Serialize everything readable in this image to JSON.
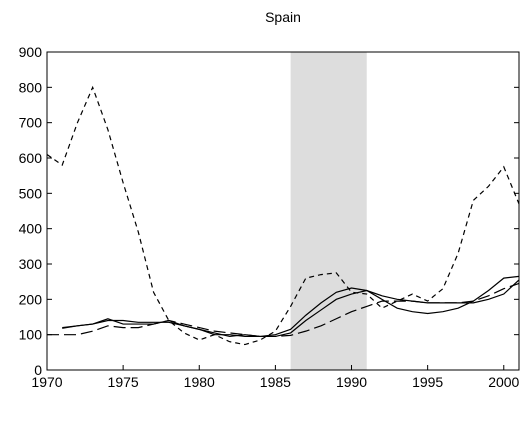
{
  "chart_data": {
    "type": "line",
    "title": "Spain",
    "x": [
      1970,
      1971,
      1972,
      1973,
      1974,
      1975,
      1976,
      1977,
      1978,
      1979,
      1980,
      1981,
      1982,
      1983,
      1984,
      1985,
      1986,
      1987,
      1988,
      1989,
      1990,
      1991,
      1992,
      1993,
      1994,
      1995,
      1996,
      1997,
      1998,
      1999,
      2000,
      2001
    ],
    "series": [
      {
        "color": "#000000",
        "dash": "5,4",
        "values": [
          610,
          580,
          700,
          800,
          680,
          530,
          390,
          220,
          140,
          105,
          85,
          100,
          80,
          72,
          85,
          110,
          180,
          260,
          270,
          275,
          220,
          215,
          175,
          195,
          215,
          195,
          230,
          330,
          480,
          520,
          575,
          470
        ]
      },
      {
        "color": "#000000",
        "dash": "none",
        "values": [
          null,
          120,
          125,
          130,
          145,
          130,
          130,
          130,
          140,
          125,
          115,
          105,
          95,
          100,
          95,
          100,
          115,
          155,
          190,
          220,
          232,
          225,
          200,
          175,
          165,
          160,
          165,
          175,
          195,
          225,
          260,
          265
        ]
      },
      {
        "color": "#000000",
        "dash": "12,5",
        "values": [
          100,
          100,
          100,
          110,
          125,
          120,
          120,
          130,
          140,
          130,
          120,
          110,
          105,
          100,
          95,
          95,
          98,
          110,
          125,
          145,
          165,
          180,
          195,
          195,
          195,
          190,
          190,
          190,
          195,
          210,
          230,
          245
        ]
      },
      {
        "color": "#000000",
        "dash": "none",
        "values": [
          null,
          118,
          125,
          130,
          140,
          140,
          135,
          135,
          135,
          125,
          115,
          100,
          100,
          95,
          95,
          95,
          105,
          140,
          170,
          200,
          215,
          225,
          210,
          200,
          195,
          190,
          190,
          190,
          190,
          200,
          215,
          255
        ]
      }
    ],
    "shade": [
      1986,
      1991
    ],
    "shade_color": "#dddddd",
    "xlim": [
      1970,
      2001
    ],
    "xticks": [
      1970,
      1975,
      1980,
      1985,
      1990,
      1995,
      2000
    ],
    "ylim": [
      0,
      900
    ],
    "yticks": [
      0,
      100,
      200,
      300,
      400,
      500,
      600,
      700,
      800,
      900
    ]
  }
}
